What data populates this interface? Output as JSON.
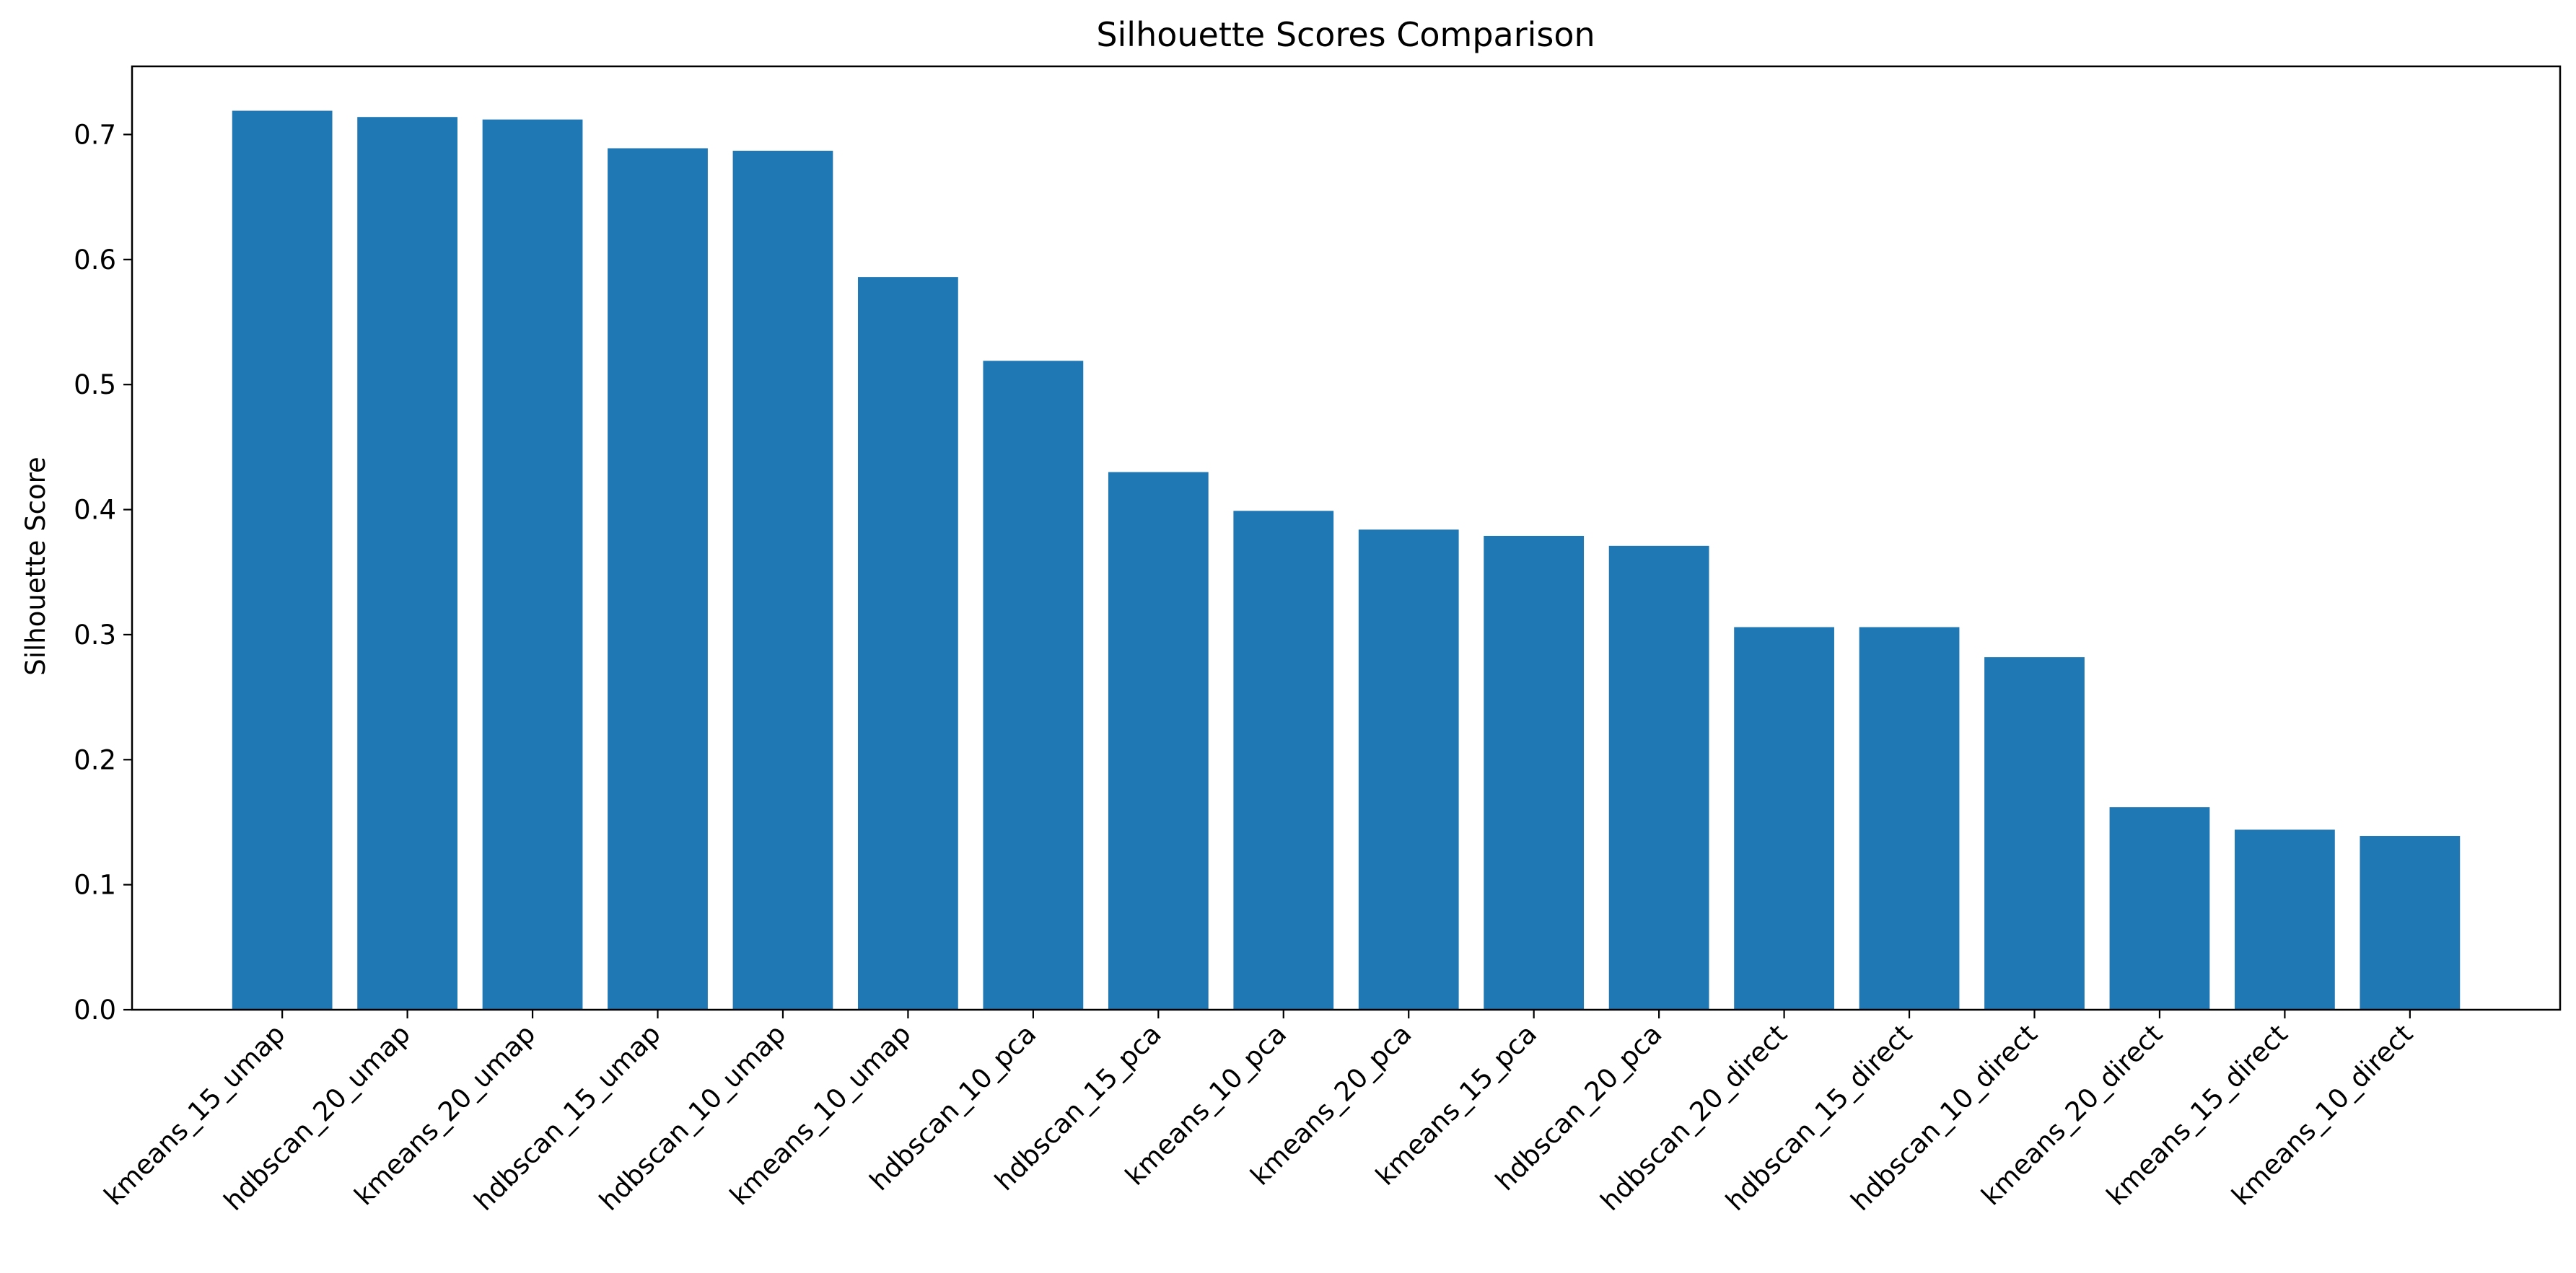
{
  "chart_data": {
    "type": "bar",
    "title": "Silhouette Scores Comparison",
    "xlabel": "",
    "ylabel": "Silhouette Score",
    "categories": [
      "kmeans_15_umap",
      "hdbscan_20_umap",
      "kmeans_20_umap",
      "hdbscan_15_umap",
      "hdbscan_10_umap",
      "kmeans_10_umap",
      "hdbscan_10_pca",
      "hdbscan_15_pca",
      "kmeans_10_pca",
      "kmeans_20_pca",
      "kmeans_15_pca",
      "hdbscan_20_pca",
      "hdbscan_20_direct",
      "hdbscan_15_direct",
      "hdbscan_10_direct",
      "kmeans_20_direct",
      "kmeans_15_direct",
      "kmeans_10_direct"
    ],
    "values": [
      0.719,
      0.714,
      0.712,
      0.689,
      0.687,
      0.586,
      0.519,
      0.43,
      0.399,
      0.384,
      0.379,
      0.371,
      0.306,
      0.306,
      0.282,
      0.162,
      0.144,
      0.139
    ],
    "ylim": [
      0,
      0.7545
    ],
    "yticks": [
      0.0,
      0.1,
      0.2,
      0.3,
      0.4,
      0.5,
      0.6,
      0.7
    ],
    "ytick_labels": [
      "0.0",
      "0.1",
      "0.2",
      "0.3",
      "0.4",
      "0.5",
      "0.6",
      "0.7"
    ],
    "grid": false,
    "legend": "none",
    "bar_color": "#1f77b4"
  }
}
